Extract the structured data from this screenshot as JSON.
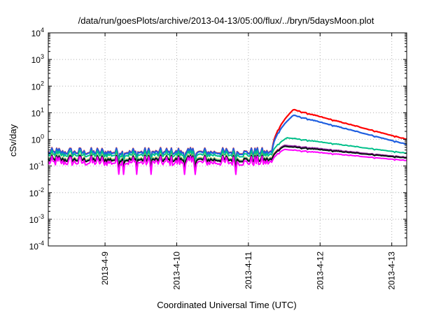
{
  "chart_data": {
    "type": "line",
    "title": "/data/run/goesPlots/archive/2013-04-13/05:00/flux/../bryn/5daysMoon.plot",
    "xlabel": "Coordinated Universal Time (UTC)",
    "ylabel": "cSv/day",
    "y_scale": "log",
    "ylim_exp": [
      -4,
      4
    ],
    "y_ticks": [
      {
        "base": "10",
        "exp": "-4"
      },
      {
        "base": "10",
        "exp": "-3"
      },
      {
        "base": "10",
        "exp": "-2"
      },
      {
        "base": "10",
        "exp": "-1"
      },
      {
        "base": "10",
        "exp": "0"
      },
      {
        "base": "10",
        "exp": "1"
      },
      {
        "base": "10",
        "exp": "2"
      },
      {
        "base": "10",
        "exp": "3"
      },
      {
        "base": "10",
        "exp": "4"
      }
    ],
    "x_range": [
      "2013-04-08 05:00",
      "2013-04-13 05:00"
    ],
    "x_ticks": [
      "2013-4-9",
      "2013-4-10",
      "2013-4-11",
      "2013-4-12",
      "2013-4-13"
    ],
    "grid": true,
    "event_onset": "2013-04-11 08:00",
    "series": [
      {
        "color": "#ff0000",
        "baseline": 0.33,
        "peak": 13.0,
        "peak_time": "2013-04-11 15:00",
        "end": 1.0
      },
      {
        "color": "#1f5fe0",
        "baseline": 0.32,
        "peak": 8.0,
        "peak_time": "2013-04-11 15:00",
        "end": 0.65
      },
      {
        "color": "#00c08a",
        "baseline": 0.26,
        "peak": 1.15,
        "peak_time": "2013-04-11 13:00",
        "end": 0.3
      },
      {
        "color": "#ffb400",
        "baseline": 0.19,
        "peak": 0.6,
        "peak_time": "2013-04-11 12:00",
        "end": 0.21
      },
      {
        "color": "#00bfe0",
        "baseline": 0.18,
        "peak": 0.55,
        "peak_time": "2013-04-11 12:00",
        "end": 0.2
      },
      {
        "color": "#8a1fb0",
        "baseline": 0.17,
        "peak": 0.6,
        "peak_time": "2013-04-11 12:00",
        "end": 0.21
      },
      {
        "color": "#111111",
        "baseline": 0.17,
        "peak": 0.55,
        "peak_time": "2013-04-11 12:00",
        "end": 0.2
      },
      {
        "color": "#ff00ff",
        "baseline": 0.135,
        "peak": 0.42,
        "peak_time": "2013-04-11 12:00",
        "end": 0.16
      }
    ]
  }
}
